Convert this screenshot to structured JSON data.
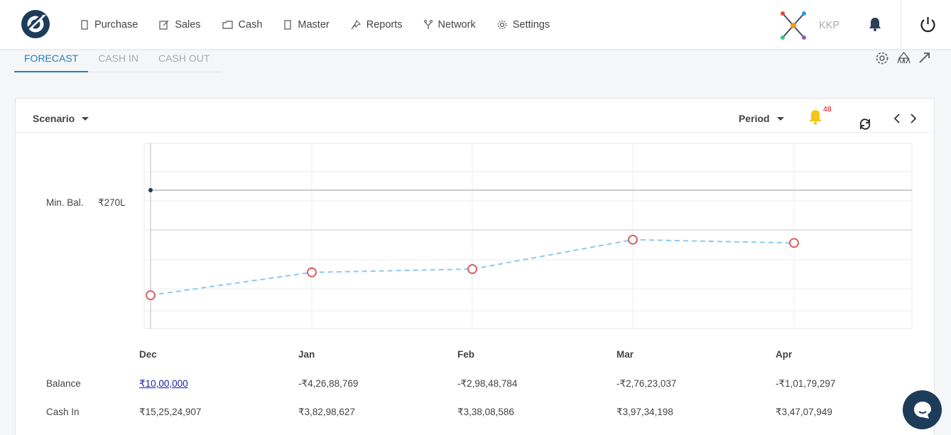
{
  "nav": {
    "items": [
      {
        "label": "Purchase",
        "icon": "purchase-icon"
      },
      {
        "label": "Sales",
        "icon": "sales-icon"
      },
      {
        "label": "Cash",
        "icon": "cash-icon"
      },
      {
        "label": "Master",
        "icon": "master-icon"
      },
      {
        "label": "Reports",
        "icon": "reports-icon"
      },
      {
        "label": "Network",
        "icon": "network-icon"
      },
      {
        "label": "Settings",
        "icon": "settings-icon"
      }
    ],
    "user_name": "KKP"
  },
  "tabs": [
    {
      "label": "FORECAST",
      "active": true
    },
    {
      "label": "CASH IN",
      "active": false
    },
    {
      "label": "CASH OUT",
      "active": false
    }
  ],
  "card": {
    "scenario_label": "Scenario",
    "period_label": "Period",
    "notification_count": "48",
    "min_bal_label": "Min. Bal.",
    "min_bal_value": "₹270L"
  },
  "chart_data": {
    "type": "line",
    "categories": [
      "Dec",
      "Jan",
      "Feb",
      "Mar",
      "Apr"
    ],
    "min_balance_line": 270,
    "series": [
      {
        "values": [
          -4.5,
          -3.8,
          -3.7,
          -2.8,
          -2.9
        ],
        "color": "#8ec9ee"
      }
    ],
    "marker_color": "#d9534f",
    "grid": true
  },
  "table": {
    "columns": [
      "Dec",
      "Jan",
      "Feb",
      "Mar",
      "Apr"
    ],
    "rows": [
      {
        "label": "Balance",
        "values": [
          "₹10,00,000",
          "-₹4,26,88,769",
          "-₹2,98,48,784",
          "-₹2,76,23,037",
          "-₹1,01,79,297"
        ]
      },
      {
        "label": "Cash In",
        "values": [
          "₹15,25,24,907",
          "₹3,82,98,627",
          "₹3,38,08,586",
          "₹3,97,34,198",
          "₹3,47,07,949"
        ]
      }
    ]
  },
  "colors": {
    "accent": "#1f7fc4",
    "chat_bg": "#1d3c5a",
    "bell_yellow": "#f5c518"
  }
}
